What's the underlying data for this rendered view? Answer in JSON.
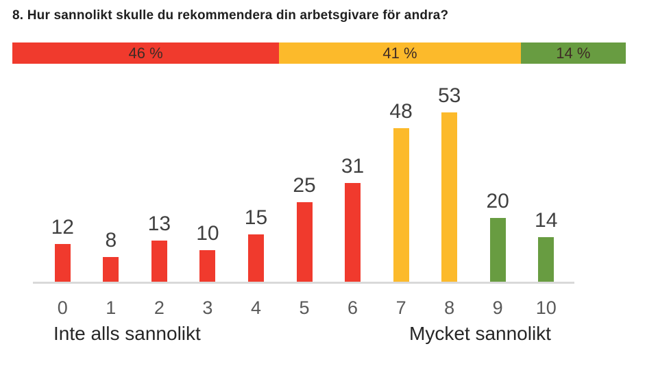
{
  "title": "8. Hur sannolikt skulle du rekommendera din arbetsgivare för andra?",
  "colors": {
    "detractor_red": "#f03a2d",
    "passive_yellow": "#fcba2b",
    "promoter_green": "#689c41",
    "axis_line": "#d9d9d9",
    "title_text": "#1f1f1f",
    "value_label": "#404040",
    "tick_label": "#595959",
    "caption_text": "#262626"
  },
  "summary_bar": {
    "segments": [
      {
        "group": "detractors",
        "label": "46 %",
        "value": 46,
        "color_key": "detractor_red"
      },
      {
        "group": "passives",
        "label": "41 %",
        "value": 41,
        "color_key": "passive_yellow"
      },
      {
        "group": "promoters",
        "label": "14 %",
        "value": 14,
        "color_key": "promoter_green"
      }
    ]
  },
  "chart_data": {
    "type": "bar",
    "title": "8. Hur sannolikt skulle du rekommendera din arbetsgivare för andra?",
    "categories": [
      "0",
      "1",
      "2",
      "3",
      "4",
      "5",
      "6",
      "7",
      "8",
      "9",
      "10"
    ],
    "values": [
      12,
      8,
      13,
      10,
      15,
      25,
      31,
      48,
      53,
      20,
      14
    ],
    "bar_color_keys": [
      "detractor_red",
      "detractor_red",
      "detractor_red",
      "detractor_red",
      "detractor_red",
      "detractor_red",
      "detractor_red",
      "passive_yellow",
      "passive_yellow",
      "promoter_green",
      "promoter_green"
    ],
    "value_labels_shown": true,
    "xlabel": "",
    "ylabel": "",
    "ylim": [
      0,
      53
    ],
    "grid": false,
    "legend": "none",
    "axis_caption_left": "Inte alls sannolikt",
    "axis_caption_right": "Mycket sannolikt",
    "summary_percentages": [
      {
        "label": "46 %",
        "value": 46,
        "scores": "0-6"
      },
      {
        "label": "41 %",
        "value": 41,
        "scores": "7-8"
      },
      {
        "label": "14 %",
        "value": 14,
        "scores": "9-10"
      }
    ]
  },
  "axis": {
    "caption_left": "Inte alls sannolikt",
    "caption_right": "Mycket sannolikt"
  }
}
